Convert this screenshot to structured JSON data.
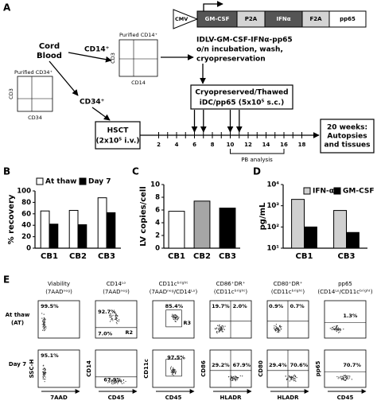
{
  "panel_a": {
    "label": "A",
    "cord_blood": [
      "Cord",
      "Blood"
    ],
    "cd34_plot": {
      "title": "Purified CD34⁺",
      "y_axis": "CD3",
      "x_axis": "CD34"
    },
    "cd14_plot": {
      "title": "Purified CD14⁺",
      "y_axis": "CD3",
      "x_axis": "CD14"
    },
    "cd14_label": "CD14⁺",
    "cd34_label": "CD34⁺",
    "construct": [
      "CMV",
      "GM-CSF",
      "P2A",
      "IFNα",
      "F2A",
      "pp65"
    ],
    "transduction": [
      "IDLV-GM-CSF-IFNα-pp65",
      "o/n incubation, wash,",
      "cryopreservation"
    ],
    "vaccine": [
      "Cryopreserved/Thawed",
      "iDC/pp65 (5x10⁵ s.c.)"
    ],
    "hsct": [
      "HSCT",
      "(2x10⁵ i.v.)"
    ],
    "timeline_weeks": [
      2,
      4,
      6,
      8,
      10,
      12,
      14,
      16,
      18
    ],
    "pb_analysis": "PB analysis",
    "endpoint": [
      "20 weeks:",
      "Autopsies",
      "and tissues"
    ]
  },
  "chart_data": [
    {
      "type": "bar",
      "label": "B",
      "y_label": "% recovery",
      "categories": [
        "CB1",
        "CB2",
        "CB3"
      ],
      "series": [
        {
          "name": "At thaw",
          "color": "#ffffff",
          "values": [
            65,
            66,
            88
          ]
        },
        {
          "name": "Day 7",
          "color": "#000000",
          "values": [
            42,
            41,
            62
          ]
        }
      ],
      "ylim": [
        0,
        100
      ],
      "yticks": [
        0,
        20,
        40,
        60,
        80,
        100
      ],
      "legend": "top"
    },
    {
      "type": "bar",
      "label": "C",
      "y_label": "LV copies/cell",
      "categories": [
        "CB1",
        "CB2",
        "CB3"
      ],
      "values": [
        5.8,
        7.4,
        6.3
      ],
      "colors": [
        "#ffffff",
        "#a6a6a6",
        "#000000"
      ],
      "ylim": [
        0,
        10
      ],
      "yticks": [
        0,
        2,
        4,
        6,
        8,
        10
      ]
    },
    {
      "type": "bar",
      "label": "D",
      "y_label": "pg/mL",
      "log_scale": true,
      "categories": [
        "CB1",
        "CB3"
      ],
      "series": [
        {
          "name": "IFN-α",
          "color": "#d0d0d0",
          "values": [
            2000,
            600
          ]
        },
        {
          "name": "GM-CSF",
          "color": "#000000",
          "values": [
            100,
            55
          ]
        }
      ],
      "ylim": [
        10,
        10000
      ],
      "yticks": [
        {
          "value": 10,
          "label": "10¹"
        },
        {
          "value": 100,
          "label": "10²"
        },
        {
          "value": 1000,
          "label": "10³"
        },
        {
          "value": 10000,
          "label": "10⁴"
        }
      ],
      "legend": "top"
    }
  ],
  "panel_e": {
    "label": "E",
    "rows": [
      [
        "At thaw",
        "(AT)"
      ],
      [
        "Day 7"
      ]
    ],
    "columns": [
      {
        "title": "Viability",
        "subtitle": "(7AADⁿᵉᵍ)",
        "y_axis": "SSC-H",
        "x_axis": "7AAD"
      },
      {
        "title": "CD14ᴸᵒ",
        "subtitle": "(7AADⁿᵉᵍ)",
        "y_axis": "CD14",
        "x_axis": "CD45"
      },
      {
        "title": "CD11cᵇʳⁱᵍʰᵗ",
        "subtitle": "(7AADⁿᵉᵍ/CD14ᴸᵒ)",
        "y_axis": "CD11c",
        "x_axis": "CD45"
      },
      {
        "title": "CD86⁺DR⁺",
        "subtitle": "(CD11cᵇʳⁱᵍʰᵗ)",
        "y_axis": "CD86",
        "x_axis": "HLADR"
      },
      {
        "title": "CD80⁺DR⁺",
        "subtitle": "(CD11cᵇʳⁱᵍʰᵗ)",
        "y_axis": "CD80",
        "x_axis": "HLADR"
      },
      {
        "title": "pp65",
        "subtitle": "(CD14ᴸᵒ/CD11cᵇʳⁱᵍʰᵗ)",
        "y_axis": "pp65",
        "x_axis": "CD45"
      }
    ],
    "plots": [
      [
        [
          "99.5%"
        ],
        [
          "92.7%",
          "7.0%",
          "R2"
        ],
        [
          "85.4%",
          "R3"
        ],
        [
          "19.7%",
          "2.0%"
        ],
        [
          "0.9%",
          "0.7%"
        ],
        [
          "1.3%"
        ]
      ],
      [
        [
          "95.1%"
        ],
        [
          "67.9%"
        ],
        [
          "97.5%"
        ],
        [
          "29.2%",
          "67.9%"
        ],
        [
          "29.4%",
          "70.6%"
        ],
        [
          "70.7%"
        ]
      ]
    ]
  }
}
